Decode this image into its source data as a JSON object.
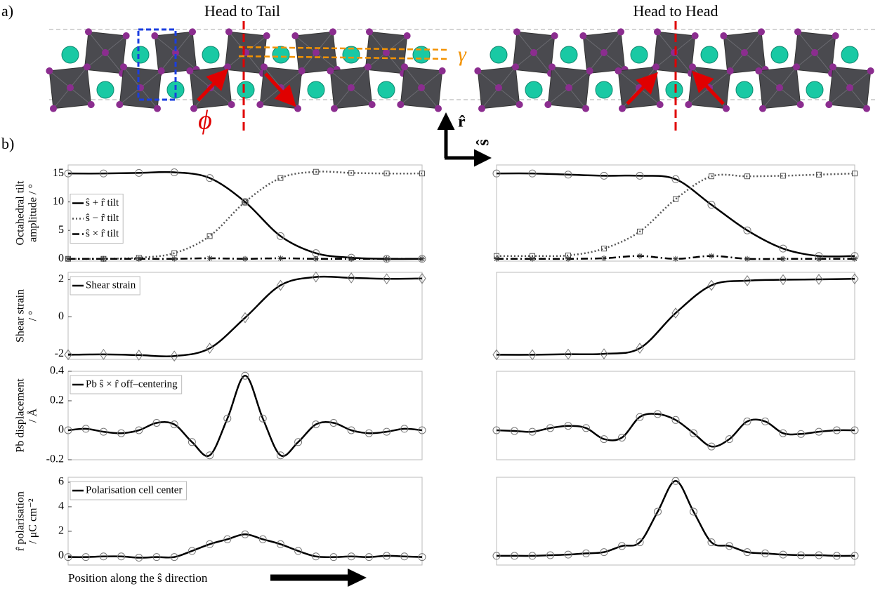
{
  "panel_a": {
    "label": "a)",
    "titles": [
      "Head to Tail",
      "Head to Head"
    ],
    "gamma": "γ",
    "phi": "ϕ",
    "r_axis": "r̂",
    "s_axis": "ŝ"
  },
  "panel_b_label": "b)",
  "x_axis_label": "Position along the ŝ direction",
  "chart_data": [
    {
      "type": "line",
      "ylabel": [
        "Octahedral tilt",
        "amplitude / °"
      ],
      "xlim": [
        0,
        10
      ],
      "ylim": [
        -0.4,
        16.5
      ],
      "yticks": [
        0,
        5,
        10,
        15
      ],
      "legend": "center left",
      "x": [
        0,
        1,
        2,
        3,
        4,
        5,
        6,
        7,
        8,
        9,
        10
      ],
      "series": [
        {
          "name": "ŝ + r̂ tilt",
          "color": "#000000",
          "dash": "solid",
          "marker": "o",
          "values": [
            15,
            15,
            15.1,
            15.2,
            14.2,
            10,
            4,
            1,
            0.2,
            0,
            0
          ]
        },
        {
          "name": "ŝ − r̂ tilt",
          "color": "#555555",
          "dash": "dotted",
          "marker": "s",
          "values": [
            0,
            0,
            0.2,
            1,
            4,
            10,
            14.2,
            15.3,
            15.1,
            15,
            15
          ]
        },
        {
          "name": "ŝ × r̂ tilt",
          "color": "#000000",
          "dash": "dashdot",
          "marker": "*",
          "values": [
            0,
            0,
            0,
            0,
            0.1,
            0,
            0.1,
            0,
            0,
            0,
            0
          ]
        }
      ]
    },
    {
      "type": "line",
      "xlim": [
        0,
        10
      ],
      "ylim": [
        -0.4,
        16.5
      ],
      "x": [
        0,
        1,
        2,
        3,
        4,
        5,
        6,
        7,
        8,
        9,
        10
      ],
      "series": [
        {
          "color": "#000000",
          "dash": "solid",
          "marker": "o",
          "values": [
            15,
            15,
            14.8,
            14.6,
            14.6,
            14,
            9.5,
            5,
            1.8,
            0.5,
            0.5
          ]
        },
        {
          "color": "#555555",
          "dash": "dotted",
          "marker": "s",
          "values": [
            0.5,
            0.5,
            0.6,
            1.8,
            4.8,
            10.5,
            14.5,
            14.5,
            14.6,
            14.8,
            15
          ]
        },
        {
          "color": "#000000",
          "dash": "dashdot",
          "marker": "*",
          "values": [
            0,
            0,
            0,
            0.1,
            0.5,
            0,
            0.5,
            0,
            0,
            0,
            0
          ]
        }
      ]
    },
    {
      "type": "line",
      "ylabel": [
        "Shear strain",
        "/ °"
      ],
      "xlim": [
        0,
        10
      ],
      "ylim": [
        -2.3,
        2.4
      ],
      "yticks": [
        -2,
        0,
        2
      ],
      "legend": "upper left",
      "x": [
        0,
        1,
        2,
        3,
        4,
        5,
        6,
        7,
        8,
        9,
        10
      ],
      "series": [
        {
          "name": "Shear strain",
          "color": "#000000",
          "dash": "solid",
          "marker": "d",
          "values": [
            -2.05,
            -2.03,
            -2.07,
            -2.12,
            -1.7,
            -0.05,
            1.7,
            2.15,
            2.1,
            2.05,
            2.07
          ]
        }
      ]
    },
    {
      "type": "line",
      "xlim": [
        0,
        10
      ],
      "ylim": [
        -2.3,
        2.4
      ],
      "x": [
        0,
        1,
        2,
        3,
        4,
        5,
        6,
        7,
        8,
        9,
        10
      ],
      "series": [
        {
          "color": "#000000",
          "dash": "solid",
          "marker": "d",
          "values": [
            -2.05,
            -2.05,
            -2.02,
            -2,
            -1.7,
            0.2,
            1.7,
            1.95,
            2,
            2.02,
            2.05
          ]
        }
      ]
    },
    {
      "type": "line",
      "ylabel": [
        "Pb displacement",
        "/ Å"
      ],
      "xlim": [
        0,
        20
      ],
      "ylim": [
        -0.2,
        0.4
      ],
      "yticks": [
        -0.2,
        0,
        0.2,
        0.4
      ],
      "legend": "upper left",
      "x": [
        0,
        1,
        2,
        3,
        4,
        5,
        6,
        7,
        8,
        9,
        10,
        11,
        12,
        13,
        14,
        15,
        16,
        17,
        18,
        19,
        20
      ],
      "series": [
        {
          "name": "Pb ŝ × r̂ off–centering",
          "color": "#000000",
          "dash": "solid",
          "marker": "o",
          "values": [
            0,
            0.01,
            -0.01,
            -0.02,
            0,
            0.05,
            0.04,
            -0.08,
            -0.17,
            0.08,
            0.37,
            0.08,
            -0.17,
            -0.08,
            0.04,
            0.05,
            0,
            -0.02,
            -0.01,
            0.01,
            0
          ]
        }
      ]
    },
    {
      "type": "line",
      "xlim": [
        0,
        20
      ],
      "ylim": [
        -0.2,
        0.4
      ],
      "x": [
        0,
        1,
        2,
        3,
        4,
        5,
        6,
        7,
        8,
        9,
        10,
        11,
        12,
        13,
        14,
        15,
        16,
        17,
        18,
        19,
        20
      ],
      "series": [
        {
          "color": "#000000",
          "dash": "solid",
          "marker": "o",
          "values": [
            0,
            -0.005,
            -0.01,
            0.015,
            0.03,
            0.015,
            -0.06,
            -0.05,
            0.09,
            0.11,
            0.07,
            -0.02,
            -0.11,
            -0.06,
            0.06,
            0.06,
            -0.02,
            -0.025,
            -0.01,
            0,
            0
          ]
        }
      ]
    },
    {
      "type": "line",
      "ylabel": [
        "r̂ polarisation",
        "/ μC cm⁻²"
      ],
      "xlim": [
        0,
        20
      ],
      "ylim": [
        -0.75,
        6.4
      ],
      "yticks": [
        0,
        2,
        4,
        6
      ],
      "legend": "upper left",
      "x": [
        0,
        1,
        2,
        3,
        4,
        5,
        6,
        7,
        8,
        9,
        10,
        11,
        12,
        13,
        14,
        15,
        16,
        17,
        18,
        19,
        20
      ],
      "series": [
        {
          "name": "Polarisation cell center",
          "color": "#000000",
          "dash": "solid",
          "marker": "o",
          "values": [
            -0.1,
            -0.1,
            -0.05,
            -0.05,
            -0.15,
            -0.1,
            -0.1,
            0.4,
            0.95,
            1.35,
            1.75,
            1.35,
            0.95,
            0.4,
            -0.05,
            -0.1,
            -0.05,
            -0.1,
            0,
            -0.05,
            -0.1
          ]
        }
      ]
    },
    {
      "type": "line",
      "xlim": [
        0,
        20
      ],
      "ylim": [
        -0.75,
        6.4
      ],
      "x": [
        0,
        1,
        2,
        3,
        4,
        5,
        6,
        7,
        8,
        9,
        10,
        11,
        12,
        13,
        14,
        15,
        16,
        17,
        18,
        19,
        20
      ],
      "series": [
        {
          "color": "#000000",
          "dash": "solid",
          "marker": "o",
          "values": [
            0,
            0,
            0,
            0.05,
            0.1,
            0.2,
            0.3,
            0.8,
            1.1,
            3.6,
            6.1,
            3.6,
            1.1,
            0.8,
            0.3,
            0.2,
            0.1,
            0.05,
            0.05,
            0,
            0
          ]
        }
      ]
    }
  ]
}
